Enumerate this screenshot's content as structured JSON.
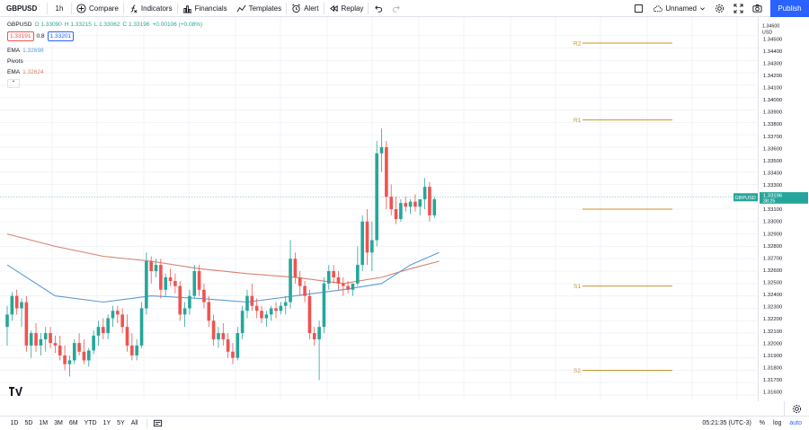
{
  "toolbar": {
    "symbol": "GBPUSD",
    "interval": "1h",
    "compare": "Compare",
    "indicators": "Indicators",
    "financials": "Financials",
    "templates": "Templates",
    "alert": "Alert",
    "replay": "Replay",
    "layout_name": "Unnamed",
    "publish": "Publish"
  },
  "legend": {
    "symbol": "GBPUSD",
    "o": "O 1.33090",
    "h": "H 1.33215",
    "l": "L 1.33062",
    "c": "C 1.33196",
    "change": "+0.00106 (+0.08%)",
    "bid": "1.33191",
    "spread": "0.8",
    "ask": "1.33201",
    "ema1_label": "EMA",
    "ema1_value": "1.32698",
    "pivots_label": "Pivots",
    "ema2_label": "EMA",
    "ema2_value": "1.32624"
  },
  "price_axis": {
    "currency": "USD",
    "top_value": "1.34600",
    "ticks": [
      "1.34500",
      "1.34400",
      "1.34300",
      "1.34200",
      "1.34100",
      "1.34000",
      "1.33900",
      "1.33800",
      "1.33700",
      "1.33600",
      "1.33500",
      "1.33400",
      "1.33300",
      "1.33200",
      "1.33100",
      "1.33000",
      "1.32900",
      "1.32800",
      "1.32700",
      "1.32600",
      "1.32500",
      "1.32400",
      "1.32300",
      "1.32200",
      "1.32100",
      "1.32000",
      "1.31900",
      "1.31800",
      "1.31700",
      "1.31600"
    ],
    "last_price": "1.33196",
    "countdown": "38:25",
    "last_symbol": "GBPUSD"
  },
  "time_axis": [
    "1:00",
    "9",
    "12:00",
    "10",
    "12:00",
    "13",
    "12:00",
    "14",
    "12:00",
    "15",
    "12:00",
    "16",
    "12:00",
    "17",
    "12:00",
    "20",
    "12:00",
    "2"
  ],
  "pivots": {
    "r2": "R2",
    "r1": "R1",
    "s1": "S1",
    "s2": "S2"
  },
  "bottom": {
    "ranges": [
      "1D",
      "5D",
      "1M",
      "3M",
      "6M",
      "YTD",
      "1Y",
      "5Y",
      "All"
    ],
    "clock": "05:21:35 (UTC-3)",
    "pct": "%",
    "log": "log",
    "auto": "auto"
  },
  "colors": {
    "up": "#26a69a",
    "down": "#ef5350",
    "ema_blue": "#5b9bd5",
    "ema_red": "#d9806e",
    "pivot": "#c8922a",
    "accent": "#2962ff"
  },
  "chart_data": {
    "type": "candlestick",
    "ylim": [
      1.3155,
      1.3465
    ],
    "candles": [
      [
        1.3215,
        1.3232,
        1.32,
        1.3225
      ],
      [
        1.3225,
        1.3243,
        1.322,
        1.324
      ],
      [
        1.324,
        1.3245,
        1.3225,
        1.323
      ],
      [
        1.323,
        1.3238,
        1.3215,
        1.3235
      ],
      [
        1.3235,
        1.324,
        1.3195,
        1.32
      ],
      [
        1.32,
        1.3212,
        1.319,
        1.321
      ],
      [
        1.321,
        1.3218,
        1.3195,
        1.32
      ],
      [
        1.32,
        1.321,
        1.3192,
        1.3205
      ],
      [
        1.3205,
        1.3215,
        1.3195,
        1.321
      ],
      [
        1.321,
        1.3215,
        1.3198,
        1.3202
      ],
      [
        1.3202,
        1.3208,
        1.3194,
        1.32
      ],
      [
        1.32,
        1.3208,
        1.3188,
        1.3192
      ],
      [
        1.3192,
        1.32,
        1.318,
        1.3185
      ],
      [
        1.3185,
        1.3192,
        1.3175,
        1.3188
      ],
      [
        1.3188,
        1.3205,
        1.3185,
        1.3202
      ],
      [
        1.3202,
        1.321,
        1.3192,
        1.3195
      ],
      [
        1.3195,
        1.3205,
        1.3185,
        1.3188
      ],
      [
        1.3188,
        1.3198,
        1.3183,
        1.3196
      ],
      [
        1.3196,
        1.3212,
        1.3193,
        1.3208
      ],
      [
        1.3208,
        1.322,
        1.32,
        1.3215
      ],
      [
        1.3215,
        1.3222,
        1.3205,
        1.321
      ],
      [
        1.321,
        1.3225,
        1.3205,
        1.3222
      ],
      [
        1.3222,
        1.3232,
        1.3215,
        1.3228
      ],
      [
        1.3228,
        1.3232,
        1.3218,
        1.3225
      ],
      [
        1.3225,
        1.323,
        1.321,
        1.3215
      ],
      [
        1.3215,
        1.3225,
        1.3195,
        1.32
      ],
      [
        1.32,
        1.321,
        1.3188,
        1.3192
      ],
      [
        1.3192,
        1.3205,
        1.3188,
        1.32
      ],
      [
        1.32,
        1.3235,
        1.3198,
        1.323
      ],
      [
        1.323,
        1.3275,
        1.3225,
        1.3268
      ],
      [
        1.3268,
        1.3272,
        1.325,
        1.326
      ],
      [
        1.326,
        1.327,
        1.3255,
        1.3265
      ],
      [
        1.3265,
        1.327,
        1.3238,
        1.3245
      ],
      [
        1.3245,
        1.3258,
        1.324,
        1.3255
      ],
      [
        1.3255,
        1.3262,
        1.3248,
        1.3252
      ],
      [
        1.3252,
        1.3258,
        1.3242,
        1.3248
      ],
      [
        1.3248,
        1.3252,
        1.322,
        1.3225
      ],
      [
        1.3225,
        1.3235,
        1.3215,
        1.323
      ],
      [
        1.323,
        1.3245,
        1.3225,
        1.324
      ],
      [
        1.324,
        1.3265,
        1.3238,
        1.326
      ],
      [
        1.326,
        1.3265,
        1.324,
        1.3245
      ],
      [
        1.3245,
        1.325,
        1.323,
        1.3235
      ],
      [
        1.3235,
        1.324,
        1.3215,
        1.322
      ],
      [
        1.322,
        1.3225,
        1.32,
        1.3205
      ],
      [
        1.3205,
        1.3215,
        1.3198,
        1.321
      ],
      [
        1.321,
        1.3218,
        1.32,
        1.3205
      ],
      [
        1.3205,
        1.321,
        1.319,
        1.3195
      ],
      [
        1.3195,
        1.3202,
        1.3185,
        1.319
      ],
      [
        1.319,
        1.3215,
        1.3188,
        1.321
      ],
      [
        1.321,
        1.3232,
        1.3205,
        1.3228
      ],
      [
        1.3228,
        1.3245,
        1.3222,
        1.324
      ],
      [
        1.324,
        1.325,
        1.3228,
        1.3232
      ],
      [
        1.3232,
        1.3238,
        1.3222,
        1.3228
      ],
      [
        1.3228,
        1.3232,
        1.3218,
        1.3222
      ],
      [
        1.3222,
        1.3228,
        1.3215,
        1.3225
      ],
      [
        1.3225,
        1.3232,
        1.322,
        1.323
      ],
      [
        1.323,
        1.3235,
        1.3222,
        1.3228
      ],
      [
        1.3228,
        1.3235,
        1.3225,
        1.3232
      ],
      [
        1.3232,
        1.324,
        1.3225,
        1.3235
      ],
      [
        1.3235,
        1.3285,
        1.323,
        1.327
      ],
      [
        1.327,
        1.3275,
        1.325,
        1.3255
      ],
      [
        1.3255,
        1.326,
        1.324,
        1.3248
      ],
      [
        1.3248,
        1.3252,
        1.3235,
        1.324
      ],
      [
        1.324,
        1.3245,
        1.3205,
        1.321
      ],
      [
        1.321,
        1.3215,
        1.32,
        1.3205
      ],
      [
        1.3205,
        1.322,
        1.3172,
        1.3215
      ],
      [
        1.3215,
        1.3255,
        1.321,
        1.325
      ],
      [
        1.325,
        1.3265,
        1.3245,
        1.326
      ],
      [
        1.326,
        1.3265,
        1.325,
        1.3255
      ],
      [
        1.3255,
        1.326,
        1.3245,
        1.325
      ],
      [
        1.325,
        1.3255,
        1.324,
        1.3248
      ],
      [
        1.3248,
        1.3252,
        1.3242,
        1.3245
      ],
      [
        1.3245,
        1.325,
        1.324,
        1.325
      ],
      [
        1.325,
        1.328,
        1.3248,
        1.3265
      ],
      [
        1.3265,
        1.3305,
        1.326,
        1.33
      ],
      [
        1.33,
        1.331,
        1.3265,
        1.3275
      ],
      [
        1.3275,
        1.33,
        1.326,
        1.3285
      ],
      [
        1.3285,
        1.3365,
        1.328,
        1.3355
      ],
      [
        1.3355,
        1.3375,
        1.334,
        1.336
      ],
      [
        1.336,
        1.3365,
        1.331,
        1.332
      ],
      [
        1.332,
        1.333,
        1.3305,
        1.331
      ],
      [
        1.331,
        1.332,
        1.3298,
        1.3302
      ],
      [
        1.3302,
        1.3318,
        1.33,
        1.3315
      ],
      [
        1.3315,
        1.332,
        1.3308,
        1.3312
      ],
      [
        1.3312,
        1.3318,
        1.3306,
        1.3316
      ],
      [
        1.3316,
        1.3322,
        1.3308,
        1.3312
      ],
      [
        1.3312,
        1.3318,
        1.3305,
        1.3318
      ],
      [
        1.3318,
        1.3335,
        1.331,
        1.3328
      ],
      [
        1.3328,
        1.3332,
        1.33,
        1.3305
      ],
      [
        1.3305,
        1.332,
        1.3303,
        1.3318
      ]
    ],
    "ema_blue": [
      [
        0,
        1.3265
      ],
      [
        10,
        1.324
      ],
      [
        20,
        1.3235
      ],
      [
        30,
        1.324
      ],
      [
        40,
        1.3238
      ],
      [
        50,
        1.3235
      ],
      [
        60,
        1.324
      ],
      [
        70,
        1.3245
      ],
      [
        78,
        1.325
      ],
      [
        84,
        1.3265
      ],
      [
        90,
        1.3275
      ]
    ],
    "ema_red": [
      [
        0,
        1.329
      ],
      [
        10,
        1.328
      ],
      [
        20,
        1.3272
      ],
      [
        30,
        1.3268
      ],
      [
        40,
        1.3262
      ],
      [
        50,
        1.3258
      ],
      [
        60,
        1.3255
      ],
      [
        70,
        1.325
      ],
      [
        78,
        1.3255
      ],
      [
        84,
        1.3262
      ],
      [
        90,
        1.3268
      ]
    ],
    "pivot_levels": {
      "R2": 1.3444,
      "R1": 1.3382,
      "S1": 1.3248,
      "S2": 1.318,
      "P": 1.331
    }
  }
}
